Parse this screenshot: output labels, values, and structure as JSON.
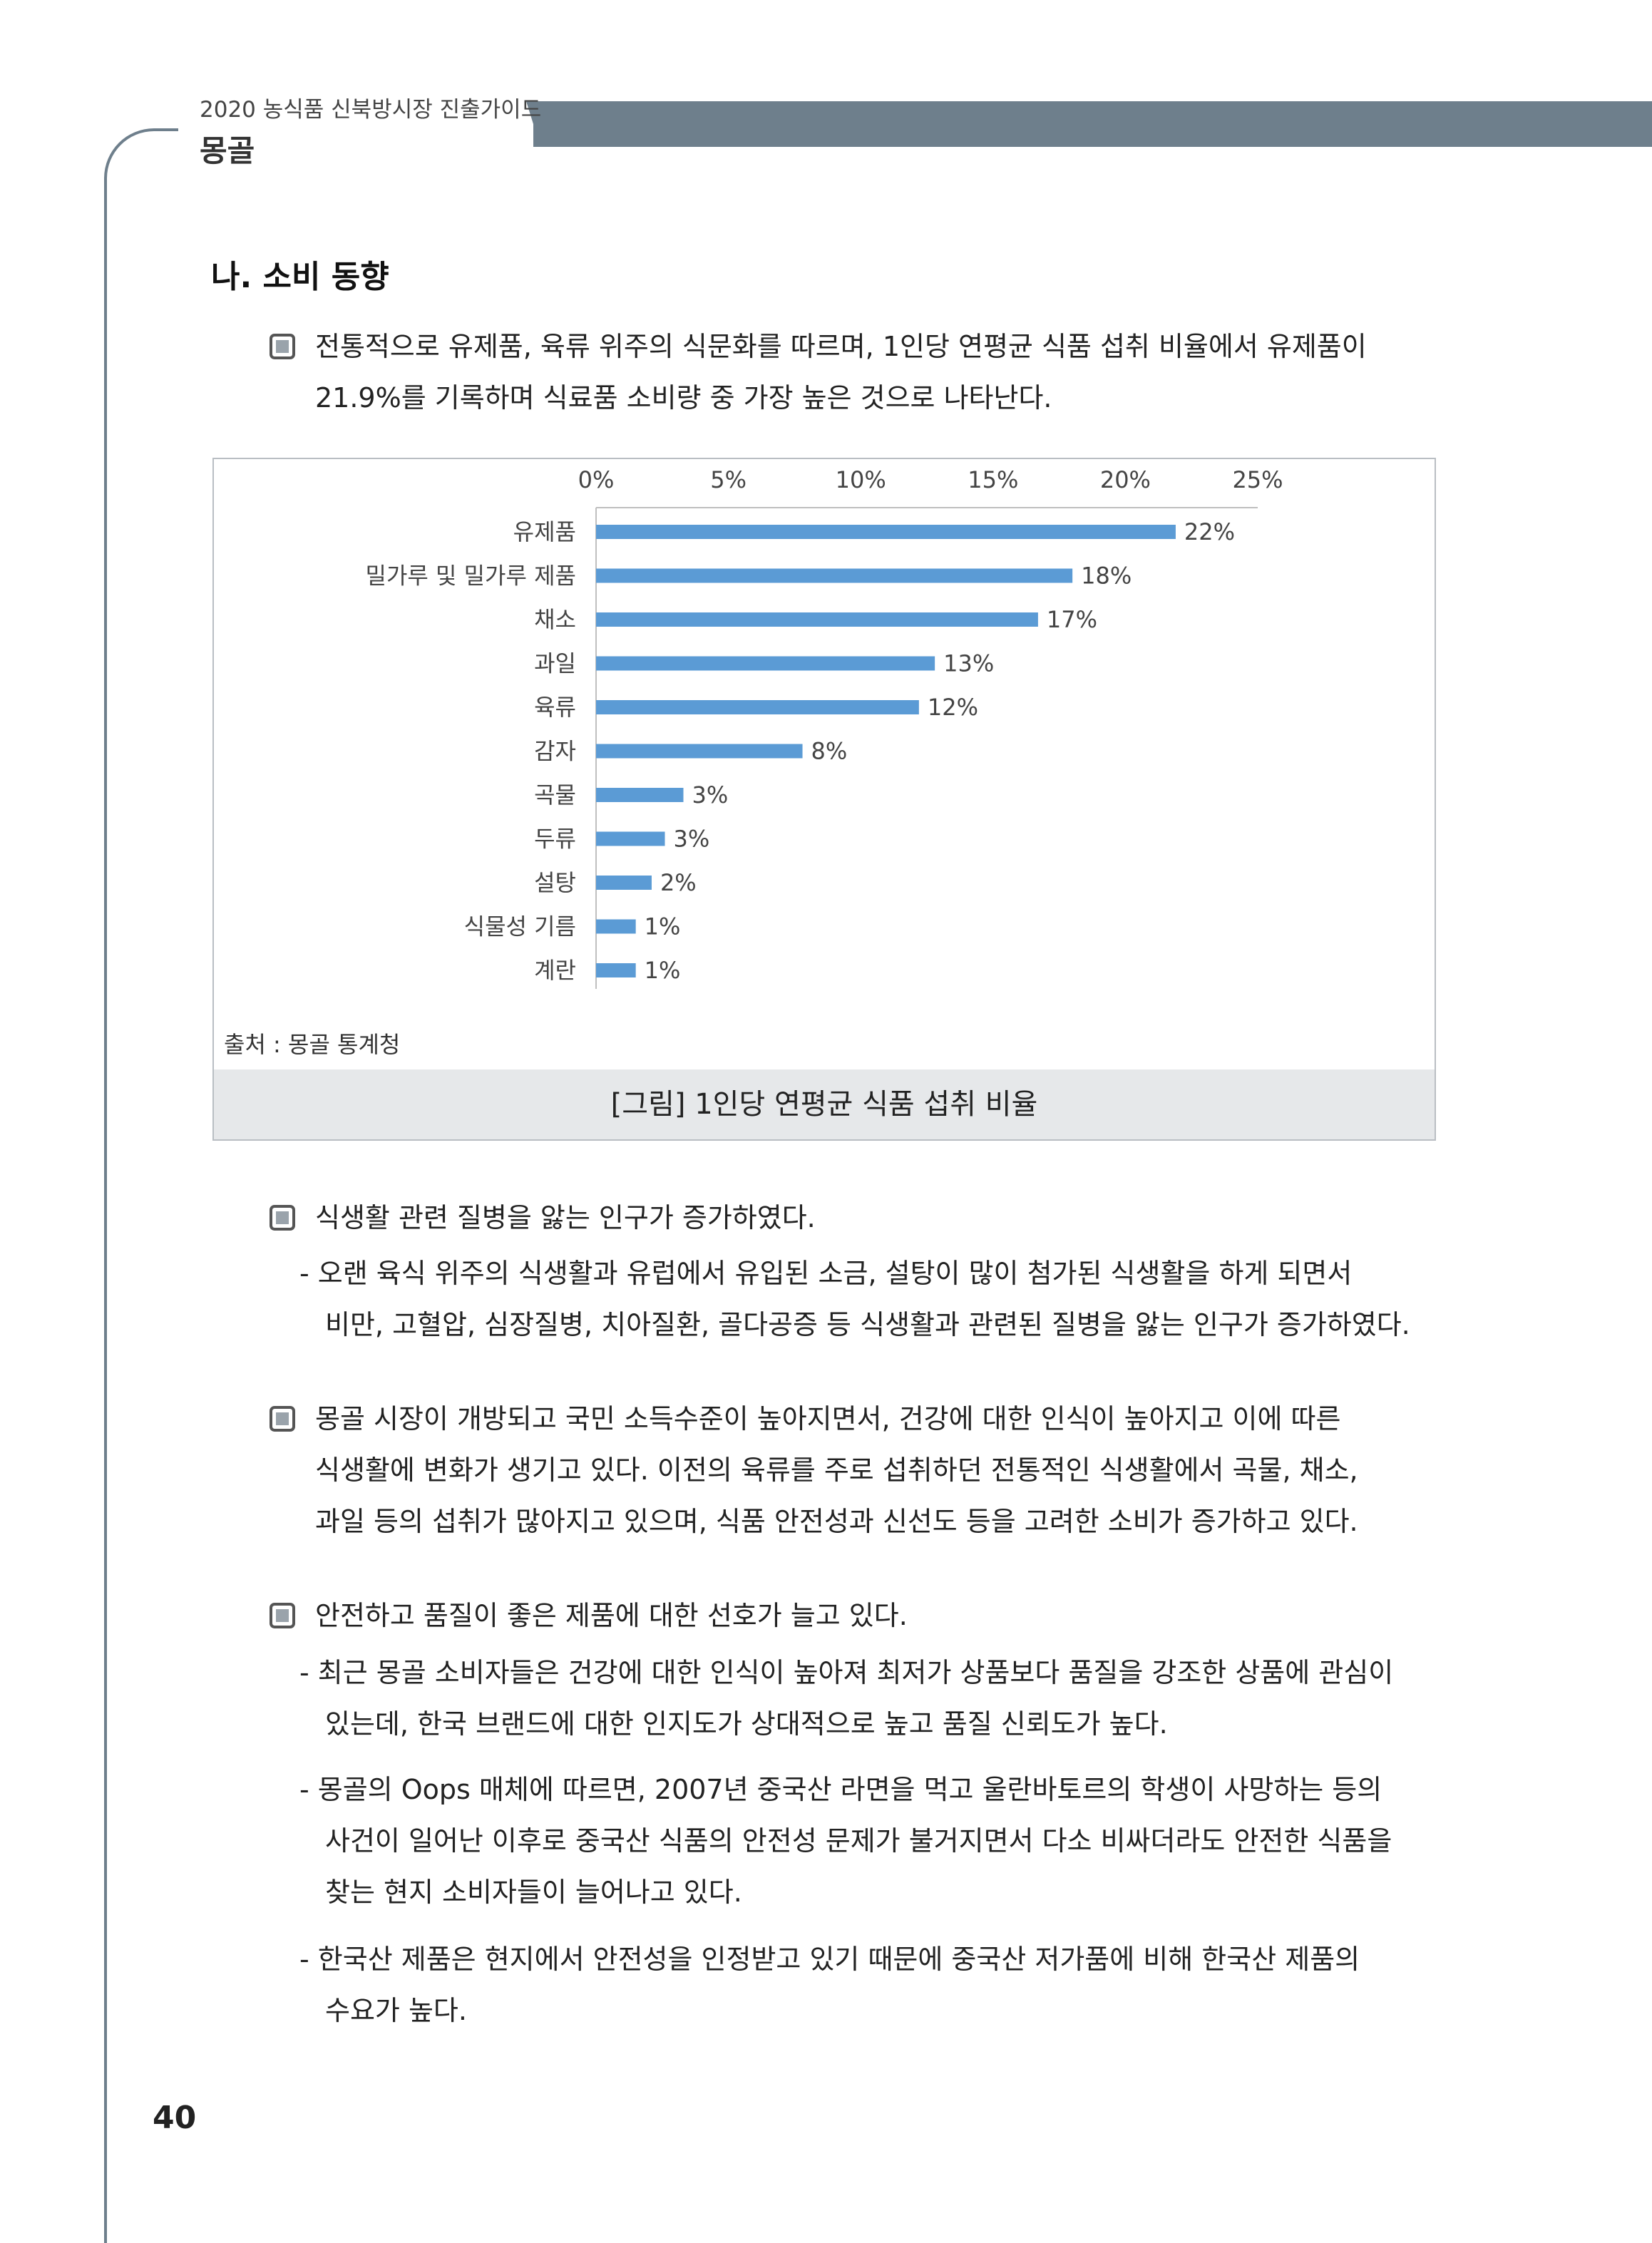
{
  "header": {
    "doc_title": "2020 농식품 신북방시장 진출가이드",
    "country": "몽골"
  },
  "section": {
    "heading": "나. 소비 동향"
  },
  "bullets": [
    {
      "lines": [
        "전통적으로 유제품, 육류 위주의 식문화를 따르며, 1인당 연평균 식품 섭취 비율에서 유제품이",
        "21.9%를 기록하며 식료품 소비량 중 가장 높은 것으로 나타난다."
      ]
    },
    {
      "lines": [
        "식생활 관련 질병을 앓는 인구가 증가하였다."
      ],
      "subs": [
        [
          "- 오랜 육식 위주의 식생활과 유럽에서 유입된 소금, 설탕이 많이 첨가된 식생활을 하게 되면서",
          "비만, 고혈압, 심장질병, 치아질환, 골다공증 등 식생활과 관련된 질병을 앓는 인구가 증가하였다."
        ]
      ]
    },
    {
      "lines": [
        "몽골 시장이 개방되고 국민 소득수준이 높아지면서, 건강에 대한 인식이 높아지고 이에 따른",
        "식생활에 변화가 생기고 있다. 이전의 육류를 주로 섭취하던 전통적인 식생활에서 곡물, 채소,",
        "과일 등의 섭취가 많아지고 있으며, 식품 안전성과 신선도 등을 고려한 소비가 증가하고 있다."
      ]
    },
    {
      "lines": [
        "안전하고 품질이 좋은 제품에 대한 선호가 늘고 있다."
      ],
      "subs": [
        [
          "- 최근 몽골 소비자들은 건강에 대한 인식이 높아져 최저가 상품보다 품질을 강조한 상품에 관심이",
          "있는데, 한국 브랜드에 대한 인지도가 상대적으로 높고 품질 신뢰도가 높다."
        ],
        [
          "- 몽골의 Oops 매체에 따르면, 2007년 중국산 라면을 먹고 울란바토르의 학생이 사망하는 등의",
          "사건이 일어난 이후로 중국산 식품의 안전성 문제가 불거지면서 다소 비싸더라도 안전한 식품을",
          "찾는 현지 소비자들이 늘어나고 있다."
        ],
        [
          "- 한국산 제품은 현지에서 안전성을 인정받고 있기 때문에 중국산 저가품에 비해 한국산 제품의",
          "수요가 높다."
        ]
      ]
    }
  ],
  "figure": {
    "source": "출처 : 몽골 통계청",
    "caption": "[그림] 1인당 연평균 식품 섭취 비율"
  },
  "chart_data": {
    "type": "bar",
    "orientation": "horizontal",
    "title": "",
    "xlabel": "",
    "ylabel": "",
    "xlim": [
      0,
      25
    ],
    "x_ticks": [
      "0%",
      "5%",
      "10%",
      "15%",
      "20%",
      "25%"
    ],
    "x_tick_values": [
      0,
      5,
      10,
      15,
      20,
      25
    ],
    "axis_position": "top",
    "grid": false,
    "bar_color": "#5b9bd5",
    "categories": [
      "유제품",
      "밀가루 및 밀가루 제품",
      "채소",
      "과일",
      "육류",
      "감자",
      "곡물",
      "두류",
      "설탕",
      "식물성 기름",
      "계란"
    ],
    "values": [
      21.9,
      18.0,
      16.7,
      12.8,
      12.2,
      7.8,
      3.3,
      2.6,
      2.1,
      1.5,
      1.5
    ],
    "value_labels": [
      "22%",
      "18%",
      "17%",
      "13%",
      "12%",
      "8%",
      "3%",
      "3%",
      "2%",
      "1%",
      "1%"
    ]
  },
  "page": {
    "number": "40"
  }
}
